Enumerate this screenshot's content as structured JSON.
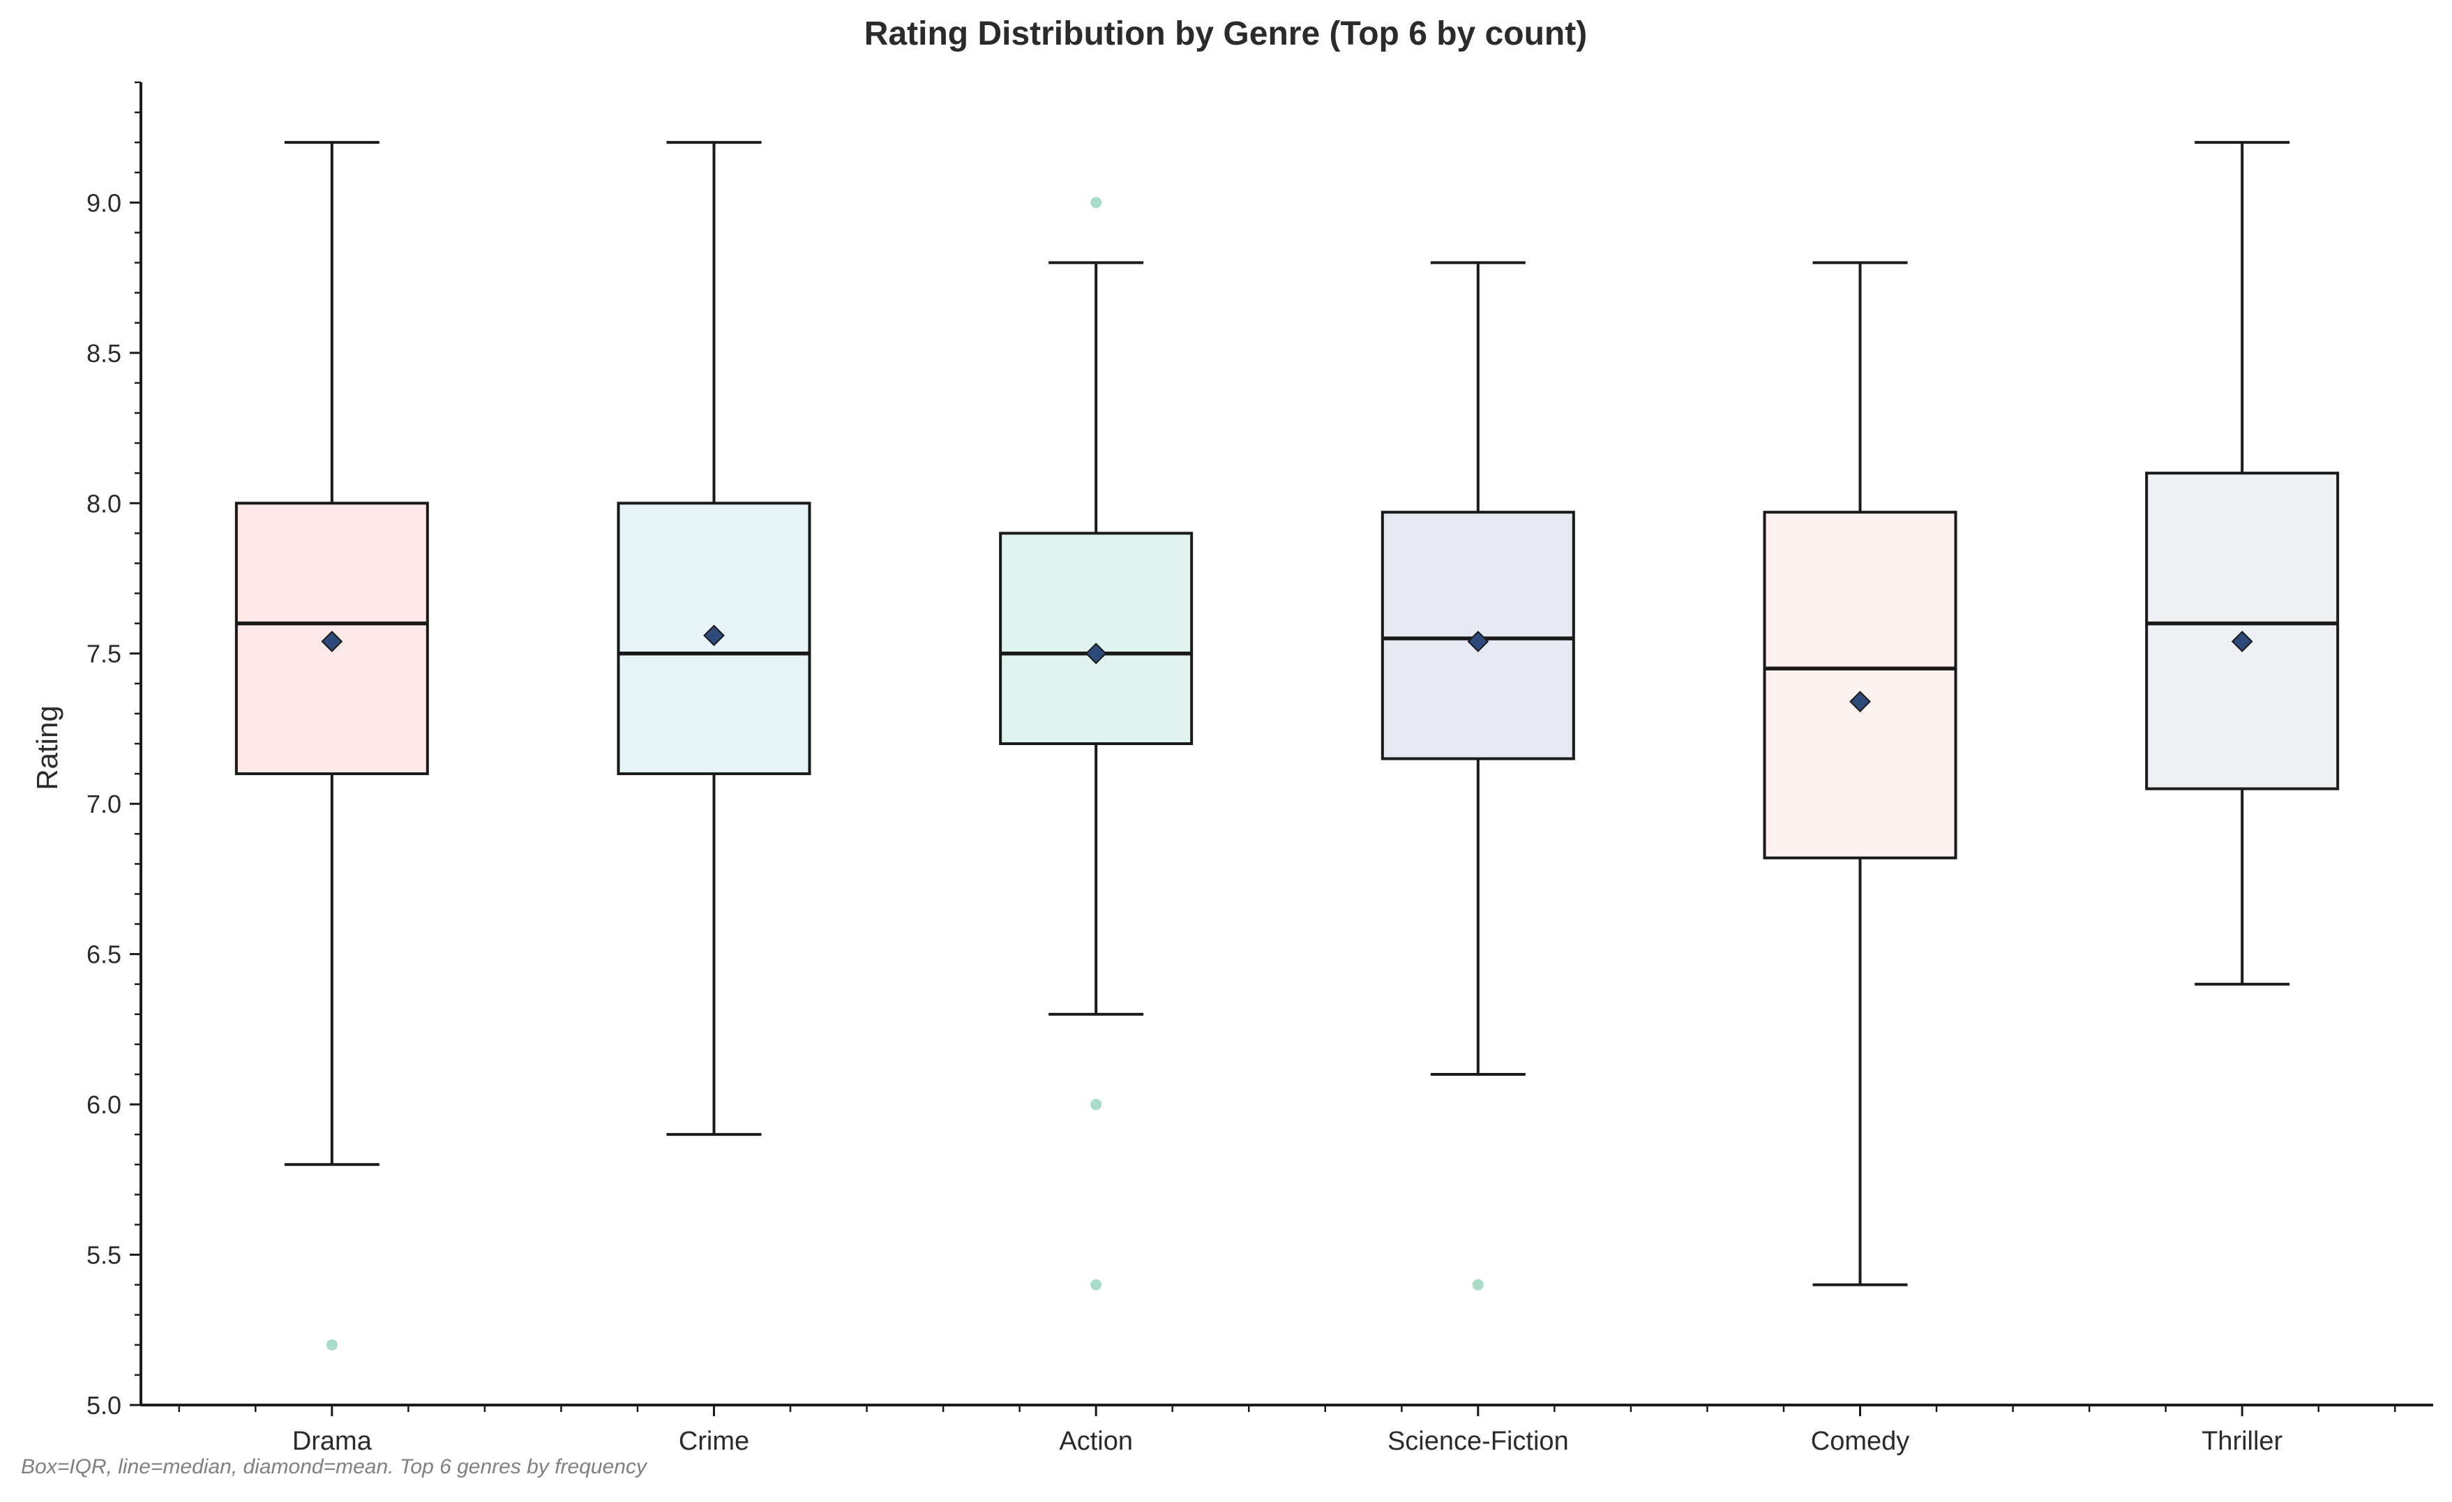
{
  "chart_data": {
    "type": "box",
    "title": "Rating Distribution by Genre (Top 6 by count)",
    "xlabel": "",
    "ylabel": "Rating",
    "ylim": [
      5.0,
      9.4
    ],
    "yticks": [
      "5.0",
      "5.5",
      "6.0",
      "6.5",
      "7.0",
      "7.5",
      "8.0",
      "8.5",
      "9.0"
    ],
    "grid": false,
    "footnote": "Box=IQR, line=median, diamond=mean. Top 6 genres by frequency",
    "categories": [
      "Drama",
      "Crime",
      "Action",
      "Science-Fiction",
      "Comedy",
      "Thriller"
    ],
    "boxes": [
      {
        "category": "Drama",
        "whisker_low": 5.8,
        "q1": 7.1,
        "median": 7.6,
        "q3": 8.0,
        "whisker_high": 9.2,
        "mean": 7.54,
        "outliers": [
          5.2
        ],
        "color": "#fce8e6"
      },
      {
        "category": "Crime",
        "whisker_low": 5.9,
        "q1": 7.1,
        "median": 7.5,
        "q3": 8.0,
        "whisker_high": 9.2,
        "mean": 7.56,
        "outliers": [],
        "color": "#e6f4f8"
      },
      {
        "category": "Action",
        "whisker_low": 6.3,
        "q1": 7.2,
        "median": 7.5,
        "q3": 7.9,
        "whisker_high": 8.8,
        "mean": 7.5,
        "outliers": [
          9.0,
          6.0,
          5.4
        ],
        "color": "#e0f3ef"
      },
      {
        "category": "Science-Fiction",
        "whisker_low": 6.1,
        "q1": 7.15,
        "median": 7.55,
        "q3": 7.97,
        "whisker_high": 8.8,
        "mean": 7.54,
        "outliers": [
          5.4
        ],
        "color": "#e6e9f2"
      },
      {
        "category": "Comedy",
        "whisker_low": 5.4,
        "q1": 6.82,
        "median": 7.45,
        "q3": 7.97,
        "whisker_high": 8.8,
        "mean": 7.34,
        "outliers": [],
        "color": "#fdf2ef"
      },
      {
        "category": "Thriller",
        "whisker_low": 6.4,
        "q1": 7.05,
        "median": 7.6,
        "q3": 8.1,
        "whisker_high": 9.2,
        "mean": 7.54,
        "outliers": [],
        "color": "#eef0f4"
      }
    ],
    "colors": {
      "box_edge": "#1a1a1a",
      "mean_marker": "#2e4a7a",
      "outlier": "#a8dcc8",
      "axis": "#1a1a1a",
      "title": "#2b2b2b",
      "footnote": "#808080"
    }
  }
}
